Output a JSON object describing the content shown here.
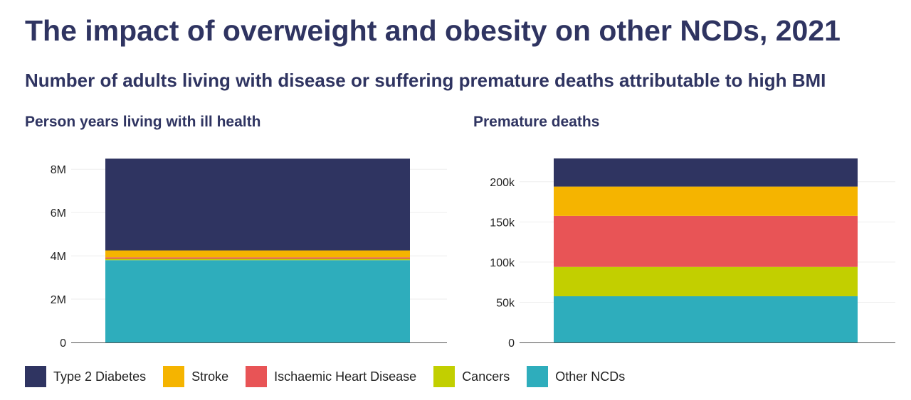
{
  "title": "The impact of overweight and obesity on other NCDs, 2021",
  "subtitle": "Number of adults living with disease or suffering premature deaths attributable to high BMI",
  "legend": [
    {
      "name": "Type 2 Diabetes",
      "color": "#2f3461"
    },
    {
      "name": "Stroke",
      "color": "#f5b400"
    },
    {
      "name": "Ischaemic Heart Disease",
      "color": "#e85456"
    },
    {
      "name": "Cancers",
      "color": "#c2cf00"
    },
    {
      "name": "Other NCDs",
      "color": "#2eadbc"
    }
  ],
  "chart_data": [
    {
      "type": "bar",
      "stacked": true,
      "title": "Person years living with ill health",
      "categories": [
        ""
      ],
      "ylim": [
        0,
        8500000
      ],
      "yticks": [
        0,
        2000000,
        4000000,
        6000000,
        8000000
      ],
      "ytick_labels": [
        "0",
        "2M",
        "4M",
        "6M",
        "8M"
      ],
      "grid": true,
      "legend": "bottom",
      "series": [
        {
          "name": "Other NCDs",
          "values": [
            3800000
          ]
        },
        {
          "name": "Cancers",
          "values": [
            70000
          ]
        },
        {
          "name": "Ischaemic Heart Disease",
          "values": [
            60000
          ]
        },
        {
          "name": "Stroke",
          "values": [
            320000
          ]
        },
        {
          "name": "Type 2 Diabetes",
          "values": [
            4240000
          ]
        }
      ]
    },
    {
      "type": "bar",
      "stacked": true,
      "title": "Premature deaths",
      "categories": [
        ""
      ],
      "ylim": [
        0,
        229000
      ],
      "yticks": [
        0,
        50000,
        100000,
        150000,
        200000
      ],
      "ytick_labels": [
        "0",
        "50k",
        "100k",
        "150k",
        "200k"
      ],
      "grid": true,
      "legend": "bottom",
      "series": [
        {
          "name": "Other NCDs",
          "values": [
            57500
          ]
        },
        {
          "name": "Cancers",
          "values": [
            36500
          ]
        },
        {
          "name": "Ischaemic Heart Disease",
          "values": [
            63500
          ]
        },
        {
          "name": "Stroke",
          "values": [
            36500
          ]
        },
        {
          "name": "Type 2 Diabetes",
          "values": [
            35000
          ]
        }
      ]
    }
  ]
}
